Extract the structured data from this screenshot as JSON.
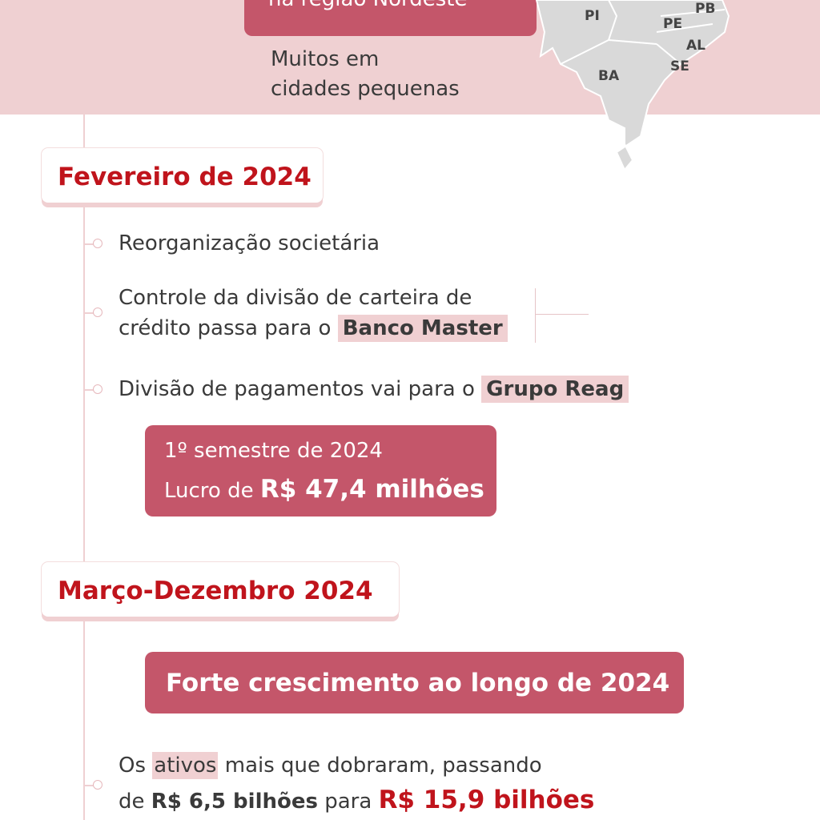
{
  "header": {
    "highlight": "na região Nordeste",
    "note_lines": [
      "Muitos em",
      "cidades pequenas"
    ],
    "map_labels": [
      "PI",
      "PB",
      "PE",
      "AL",
      "SE",
      "BA"
    ]
  },
  "sections": [
    {
      "heading": "Fevereiro de 2024",
      "items": [
        {
          "lines": [
            [
              "Reorganização societária"
            ]
          ]
        },
        {
          "lines": [
            [
              "Controle da divisão de carteira de"
            ],
            [
              "crédito passa para o ",
              "Banco Master"
            ]
          ]
        },
        {
          "lines": [
            [
              "Divisão de pagamentos vai para o ",
              "Grupo Reag"
            ]
          ]
        }
      ],
      "box": {
        "line1": "1º semestre de 2024",
        "line2": [
          "Lucro de ",
          "R$ 47,4 milhões"
        ]
      }
    },
    {
      "heading": "Março-Dezembro 2024",
      "box": {
        "line1": "Forte crescimento ao longo de 2024"
      },
      "items": [
        {
          "lines": [
            [
              "Os ",
              "ativos",
              " mais que dobraram, passando"
            ],
            [
              "de ",
              "R$ 6,5 bilhões",
              " para ",
              "R$ 15,9 bilhões"
            ]
          ]
        }
      ]
    }
  ]
}
